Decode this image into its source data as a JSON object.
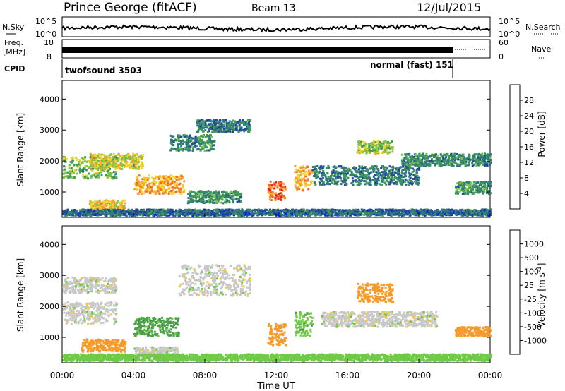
{
  "header": {
    "station": "Prince George (fitACF)",
    "beam": "Beam 13",
    "date": "12/Jul/2015"
  },
  "status_panels": {
    "nsky": {
      "label": "N.Sky",
      "ticks": [
        "10^5",
        "10^0"
      ]
    },
    "nsearch": {
      "label": "N.Search",
      "ticks": [
        "10^5",
        "10^0"
      ]
    },
    "freq": {
      "label_line1": "Freq.",
      "label_line2": "[MHz]",
      "ticks": [
        "18",
        "8"
      ]
    },
    "nave": {
      "label": "Nave",
      "ticks": [
        "60",
        "0"
      ]
    },
    "cpid": {
      "label": "CPID",
      "segments": [
        {
          "name": "twofsound 3503",
          "start_hour": 0,
          "end_hour": 21.9
        },
        {
          "name": "normal (fast) 151",
          "start_hour": 21.9,
          "end_hour": 24
        }
      ]
    }
  },
  "chart_data": [
    {
      "type": "heatmap",
      "name": "power",
      "ylabel": "Slant Range [km]",
      "xlabel": "",
      "xlim": [
        0,
        24
      ],
      "ylim": [
        180,
        4600
      ],
      "yticks": [
        1000,
        2000,
        3000,
        4000
      ],
      "colorbar": {
        "label": "Power [dB]",
        "ticks": [
          "4",
          "8",
          "12",
          "16",
          "20",
          "24",
          "28"
        ],
        "range": [
          0,
          30
        ],
        "colors": [
          "#0a1fe8",
          "#23479a",
          "#2f7b7a",
          "#3f9a55",
          "#7fc44a",
          "#f0d52a",
          "#f7a12d",
          "#f26a26",
          "#e8241e"
        ]
      },
      "echo_bands": [
        {
          "t0": 0.0,
          "t1": 3.0,
          "r0": 1400,
          "r1": 2100,
          "db": 14
        },
        {
          "t0": 1.5,
          "t1": 4.5,
          "r0": 1700,
          "r1": 2200,
          "db": 18
        },
        {
          "t0": 4.0,
          "t1": 6.8,
          "r0": 900,
          "r1": 1500,
          "db": 22
        },
        {
          "t0": 1.5,
          "t1": 3.5,
          "r0": 350,
          "r1": 700,
          "db": 20
        },
        {
          "t0": 6.0,
          "t1": 8.5,
          "r0": 2300,
          "r1": 2800,
          "db": 9
        },
        {
          "t0": 7.5,
          "t1": 10.5,
          "r0": 2900,
          "r1": 3300,
          "db": 7
        },
        {
          "t0": 7.0,
          "t1": 10.0,
          "r0": 600,
          "r1": 1000,
          "db": 10
        },
        {
          "t0": 11.5,
          "t1": 12.5,
          "r0": 700,
          "r1": 1300,
          "db": 26
        },
        {
          "t0": 13.0,
          "t1": 14.0,
          "r0": 1000,
          "r1": 1800,
          "db": 22
        },
        {
          "t0": 14.0,
          "t1": 20.0,
          "r0": 1200,
          "r1": 1800,
          "db": 8
        },
        {
          "t0": 16.5,
          "t1": 18.5,
          "r0": 2200,
          "r1": 2600,
          "db": 16
        },
        {
          "t0": 19.0,
          "t1": 24.0,
          "r0": 1800,
          "r1": 2200,
          "db": 9
        },
        {
          "t0": 22.0,
          "t1": 24.0,
          "r0": 900,
          "r1": 1300,
          "db": 10
        },
        {
          "t0": 0.0,
          "t1": 24.0,
          "r0": 200,
          "r1": 400,
          "db": 6
        }
      ]
    },
    {
      "type": "heatmap",
      "name": "velocity",
      "ylabel": "Slant Range [km]",
      "xlabel": "Time UT",
      "xlim": [
        0,
        24
      ],
      "ylim": [
        180,
        4600
      ],
      "yticks": [
        1000,
        2000,
        3000,
        4000
      ],
      "xticks": [
        "00:00",
        "04:00",
        "08:00",
        "12:00",
        "16:00",
        "20:00",
        "00:00"
      ],
      "colorbar": {
        "label": "Velocity [m s^-1]",
        "ticks": [
          "1000",
          "500",
          "100",
          "25",
          "-25",
          "-100",
          "-500",
          "-1000"
        ],
        "colors": [
          "#1f3fd4",
          "#2c7f9a",
          "#4c9f4a",
          "#6fca46",
          "#c8c8c8",
          "#f3c83a",
          "#f79a2a",
          "#f2601f",
          "#e81f1a"
        ]
      },
      "echo_bands": [
        {
          "t0": 0.0,
          "t1": 3.0,
          "r0": 1400,
          "r1": 2100,
          "v": 0
        },
        {
          "t0": 0.0,
          "t1": 3.0,
          "r0": 2400,
          "r1": 2900,
          "v": 0
        },
        {
          "t0": 1.0,
          "t1": 3.5,
          "r0": 500,
          "r1": 900,
          "v": -150
        },
        {
          "t0": 4.0,
          "t1": 6.5,
          "r0": 1000,
          "r1": 1600,
          "v": 120
        },
        {
          "t0": 4.0,
          "t1": 6.5,
          "r0": 300,
          "r1": 650,
          "v": 0
        },
        {
          "t0": 6.5,
          "t1": 10.5,
          "r0": 2300,
          "r1": 3300,
          "v": 0
        },
        {
          "t0": 11.5,
          "t1": 12.5,
          "r0": 700,
          "r1": 1400,
          "v": -200
        },
        {
          "t0": 13.0,
          "t1": 14.0,
          "r0": 1000,
          "r1": 1800,
          "v": 80
        },
        {
          "t0": 16.5,
          "t1": 18.5,
          "r0": 2100,
          "r1": 2700,
          "v": -200
        },
        {
          "t0": 14.5,
          "t1": 21.0,
          "r0": 1300,
          "r1": 1800,
          "v": 0
        },
        {
          "t0": 22.0,
          "t1": 24.0,
          "r0": 1000,
          "r1": 1300,
          "v": -150
        },
        {
          "t0": 0.0,
          "t1": 24.0,
          "r0": 200,
          "r1": 420,
          "v": 60
        }
      ]
    }
  ]
}
